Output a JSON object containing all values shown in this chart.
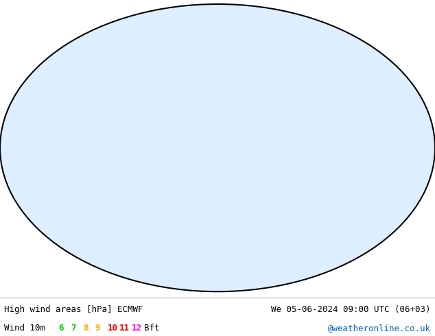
{
  "title_left": "High wind areas [hPa] ECMWF",
  "title_right": "We 05-06-2024 09:00 UTC (06+03)",
  "wind_label": "Wind 10m",
  "wind_bft_values": [
    "6",
    "7",
    "8",
    "9",
    "10",
    "11",
    "12"
  ],
  "wind_bft_colors": [
    "#00cc00",
    "#00cc00",
    "#ffaa00",
    "#ffaa00",
    "#ff0000",
    "#ff0000",
    "#ff00ff"
  ],
  "wind_bft_suffix": "Bft",
  "copyright": "@weatheronline.co.uk",
  "copyright_color": "#0066cc",
  "bg_color": "#ffffff",
  "map_bg": "#ffffff",
  "ocean_fill": "#d0e8ff",
  "land_fill": "#f0f0e8",
  "label_font_size": 9,
  "title_font_size": 9
}
